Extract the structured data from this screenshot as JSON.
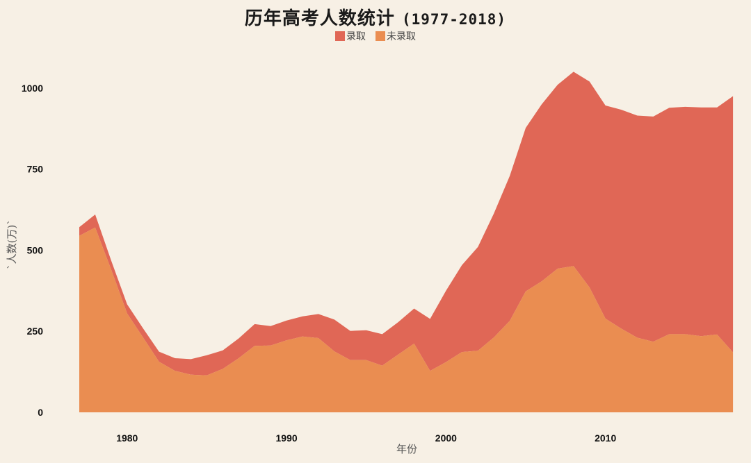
{
  "chart_data": {
    "type": "area",
    "stacked": true,
    "title": "历年高考人数统计",
    "title_years": "(1977-2018)",
    "xlabel": "年份",
    "ylabel": "`人数(万)`",
    "ylim": [
      0,
      1080
    ],
    "xlim": [
      1977,
      2018
    ],
    "yticks": [
      0,
      250,
      500,
      750,
      1000
    ],
    "xticks": [
      1980,
      1990,
      2000,
      2010
    ],
    "grid": false,
    "legend_position": "top",
    "x": [
      1977,
      1978,
      1979,
      1980,
      1981,
      1982,
      1983,
      1984,
      1985,
      1986,
      1987,
      1988,
      1989,
      1990,
      1991,
      1992,
      1993,
      1994,
      1995,
      1996,
      1997,
      1998,
      1999,
      2000,
      2001,
      2002,
      2003,
      2004,
      2005,
      2006,
      2007,
      2008,
      2009,
      2010,
      2011,
      2012,
      2013,
      2014,
      2015,
      2016,
      2017,
      2018
    ],
    "series": [
      {
        "name": "未录取",
        "color": "#ea8d51",
        "values": [
          544,
          570,
          440,
          305,
          231,
          156,
          128,
          116,
          114,
          134,
          167,
          205,
          206,
          222,
          234,
          229,
          188,
          161,
          161,
          144,
          178,
          212,
          128,
          155,
          186,
          190,
          231,
          282,
          373,
          404,
          443,
          451,
          385,
          289,
          258,
          230,
          218,
          241,
          241,
          235,
          240,
          185
        ]
      },
      {
        "name": "录取",
        "color": "#e06756",
        "values": [
          27,
          40,
          28,
          28,
          28,
          31,
          39,
          48,
          62,
          57,
          61,
          67,
          60,
          61,
          62,
          74,
          98,
          90,
          92,
          97,
          100,
          108,
          160,
          220,
          268,
          320,
          382,
          447,
          504,
          546,
          567,
          599,
          635,
          657,
          675,
          685,
          694,
          698,
          701,
          705,
          700,
          790
        ]
      }
    ],
    "totals": [
      571,
      610,
      468,
      333,
      259,
      187,
      167,
      164,
      176,
      191,
      228,
      272,
      266,
      283,
      296,
      303,
      286,
      251,
      253,
      241,
      278,
      320,
      288,
      375,
      454,
      510,
      613,
      729,
      877,
      950,
      1010,
      1050,
      1020,
      946,
      933,
      915,
      912,
      939,
      942,
      940,
      940,
      975
    ]
  },
  "legend": {
    "items": [
      {
        "label": "录取",
        "color": "#e06756"
      },
      {
        "label": "未录取",
        "color": "#ea8d51"
      }
    ]
  },
  "colors": {
    "background": "#f7f0e5",
    "admitted": "#e06756",
    "not_admitted": "#ea8d51"
  }
}
